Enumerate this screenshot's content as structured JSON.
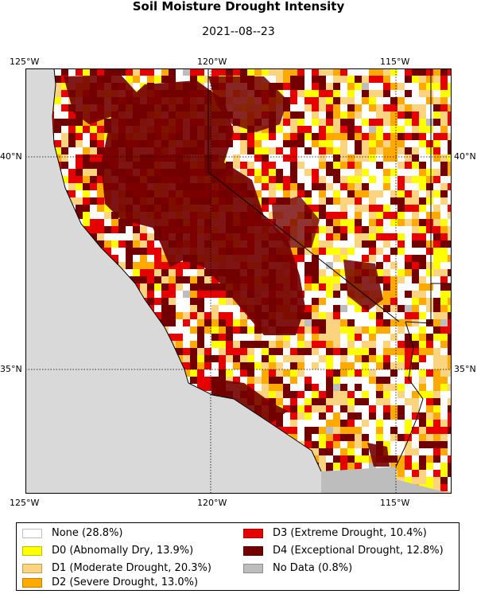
{
  "title": "Soil Moisture Drought Intensity",
  "subtitle": "2021--08--23",
  "axes": {
    "top_lon_labels": [
      "125°W",
      "120°W",
      "115°W"
    ],
    "bottom_lon_labels": [
      "125°W",
      "120°W",
      "115°W"
    ],
    "left_lat_labels": [
      "40°N",
      "35°N"
    ],
    "right_lat_labels": [
      "40°N",
      "35°N"
    ]
  },
  "map": {
    "extent": {
      "lon_min": -125,
      "lon_max": -115,
      "lat_min": 32,
      "lat_max": 42
    },
    "gridlines": {
      "lons": [
        -120,
        -115
      ],
      "lats": [
        40,
        35
      ],
      "style": "dotted"
    }
  },
  "colors": {
    "ocean": "#d9d9d9",
    "no_data": "#bdbdbd",
    "none": "#ffffff",
    "d0": "#ffff00",
    "d1": "#fcd37f",
    "d2": "#ffaa00",
    "d3": "#e60000",
    "d4": "#730000"
  },
  "legend": {
    "items": [
      {
        "key": "none",
        "label": "None (28.8%)",
        "color": "#ffffff",
        "percent": 28.8
      },
      {
        "key": "d0",
        "label": "D0 (Abnomally Dry, 13.9%)",
        "color": "#ffff00",
        "percent": 13.9
      },
      {
        "key": "d1",
        "label": "D1 (Moderate Drought, 20.3%)",
        "color": "#fcd37f",
        "percent": 20.3
      },
      {
        "key": "d2",
        "label": "D2 (Severe Drought, 13.0%)",
        "color": "#ffaa00",
        "percent": 13.0
      },
      {
        "key": "d3",
        "label": "D3 (Extreme Drought, 10.4%)",
        "color": "#e60000",
        "percent": 10.4
      },
      {
        "key": "d4",
        "label": "D4 (Exceptional Drought, 12.8%)",
        "color": "#730000",
        "percent": 12.8
      },
      {
        "key": "nodata",
        "label": "No Data (0.8%)",
        "color": "#bdbdbd",
        "percent": 0.8
      }
    ]
  }
}
